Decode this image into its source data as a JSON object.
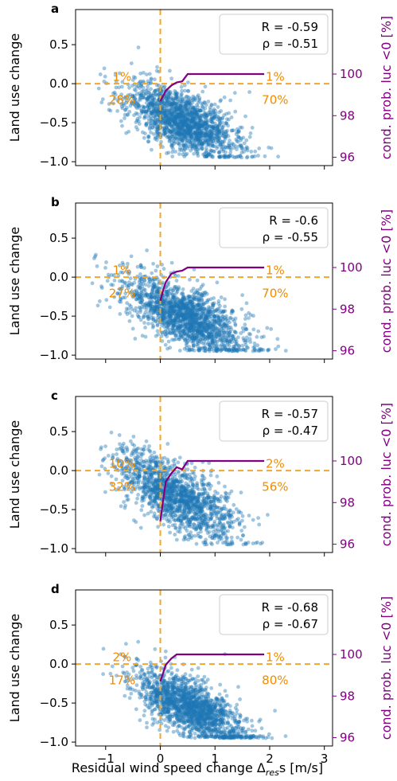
{
  "figure": {
    "xlabel": "Residual wind speed change Δ",
    "xlabel_sub": "res",
    "xlabel_tail": "s [m/s]",
    "xticks": [
      "−1",
      "0",
      "1",
      "2",
      "3"
    ],
    "colors": {
      "scatter": "#1f77b4",
      "guide": "#f5a623",
      "quadrant_text": "#f08c00",
      "cond_line": "#800080",
      "axis": "#000000"
    }
  },
  "chart_data": [
    {
      "type": "scatter",
      "panel_label": "a",
      "ylabel": "Land use change",
      "y2label": "cond. prob. luc <0 [%]",
      "xlim": [
        -1.55,
        3.15
      ],
      "ylim": [
        -1.05,
        0.95
      ],
      "y2lim": [
        95.6,
        103.1
      ],
      "yticks": [
        "0.5",
        "0.0",
        "−0.5",
        "−1.0"
      ],
      "y2ticks": [
        "100",
        "98",
        "96"
      ],
      "stats": {
        "R": "R = -0.59",
        "rho": "ρ = -0.51"
      },
      "quadrants": {
        "top_left": "1%",
        "top_right": "1%",
        "bottom_left": "28%",
        "bottom_right": "70%"
      },
      "cond_prob": {
        "x": [
          0.0,
          0.05,
          0.1,
          0.2,
          0.3,
          0.4,
          0.5,
          1.0,
          1.5,
          1.9
        ],
        "y": [
          98.7,
          98.95,
          99.2,
          99.45,
          99.6,
          99.65,
          100.0,
          100.0,
          100.0,
          100.0
        ]
      },
      "scatter": {
        "n": 1700,
        "slope": -0.28,
        "intercept": -0.36,
        "noise": 0.19,
        "x_mean": 0.4,
        "x_sd": 0.5,
        "x_min": -1.2,
        "x_max": 2.6,
        "seed": 11
      }
    },
    {
      "type": "scatter",
      "panel_label": "b",
      "ylabel": "Land use change",
      "y2label": "cond. prob. luc <0 [%]",
      "xlim": [
        -1.55,
        3.15
      ],
      "ylim": [
        -1.05,
        0.95
      ],
      "y2lim": [
        95.6,
        103.1
      ],
      "yticks": [
        "0.5",
        "0.0",
        "−0.5",
        "−1.0"
      ],
      "y2ticks": [
        "100",
        "98",
        "96"
      ],
      "stats": {
        "R": "R = -0.6",
        "rho": "ρ = -0.55"
      },
      "quadrants": {
        "top_left": "1%",
        "top_right": "1%",
        "bottom_left": "27%",
        "bottom_right": "70%"
      },
      "cond_prob": {
        "x": [
          0.0,
          0.05,
          0.1,
          0.2,
          0.3,
          0.4,
          0.5,
          1.0,
          1.5,
          1.9
        ],
        "y": [
          98.4,
          98.9,
          99.3,
          99.7,
          99.8,
          99.85,
          100.0,
          100.0,
          100.0,
          100.0
        ]
      },
      "scatter": {
        "n": 1700,
        "slope": -0.29,
        "intercept": -0.37,
        "noise": 0.19,
        "x_mean": 0.45,
        "x_sd": 0.55,
        "x_min": -1.3,
        "x_max": 3.0,
        "seed": 23
      }
    },
    {
      "type": "scatter",
      "panel_label": "c",
      "ylabel": "Land use change",
      "y2label": "cond. prob. luc <0 [%]",
      "xlim": [
        -1.55,
        3.15
      ],
      "ylim": [
        -1.05,
        0.95
      ],
      "y2lim": [
        95.6,
        103.1
      ],
      "yticks": [
        "0.5",
        "0.0",
        "−0.5",
        "−1.0"
      ],
      "y2ticks": [
        "100",
        "98",
        "96"
      ],
      "stats": {
        "R": "R = -0.57",
        "rho": "ρ = -0.47"
      },
      "quadrants": {
        "top_left": "10%",
        "top_right": "2%",
        "bottom_left": "32%",
        "bottom_right": "56%"
      },
      "cond_prob": {
        "x": [
          0.0,
          0.05,
          0.1,
          0.2,
          0.3,
          0.4,
          0.5,
          1.0,
          1.5,
          1.9
        ],
        "y": [
          97.1,
          98.1,
          99.0,
          99.4,
          99.7,
          99.6,
          100.0,
          100.0,
          100.0,
          100.0
        ]
      },
      "scatter": {
        "n": 1500,
        "slope": -0.35,
        "intercept": -0.22,
        "noise": 0.2,
        "x_mean": 0.3,
        "x_sd": 0.55,
        "x_min": -1.25,
        "x_max": 2.0,
        "seed": 37
      }
    },
    {
      "type": "scatter",
      "panel_label": "d",
      "ylabel": "Land use change",
      "y2label": "cond. prob. luc <0 [%]",
      "xlim": [
        -1.55,
        3.15
      ],
      "ylim": [
        -1.05,
        0.95
      ],
      "y2lim": [
        95.6,
        103.1
      ],
      "yticks": [
        "0.5",
        "0.0",
        "−0.5",
        "−1.0"
      ],
      "y2ticks": [
        "100",
        "98",
        "96"
      ],
      "stats": {
        "R": "R = -0.68",
        "rho": "ρ = -0.67"
      },
      "quadrants": {
        "top_left": "2%",
        "top_right": "1%",
        "bottom_left": "17%",
        "bottom_right": "80%"
      },
      "cond_prob": {
        "x": [
          0.0,
          0.05,
          0.1,
          0.2,
          0.3,
          0.4,
          0.5,
          1.0,
          1.5,
          1.9
        ],
        "y": [
          98.7,
          99.1,
          99.5,
          99.8,
          100.0,
          100.0,
          100.0,
          100.0,
          100.0,
          100.0
        ]
      },
      "scatter": {
        "n": 1700,
        "slope": -0.33,
        "intercept": -0.38,
        "noise": 0.18,
        "x_mean": 0.55,
        "x_sd": 0.5,
        "x_min": -1.05,
        "x_max": 2.6,
        "seed": 51
      }
    }
  ]
}
